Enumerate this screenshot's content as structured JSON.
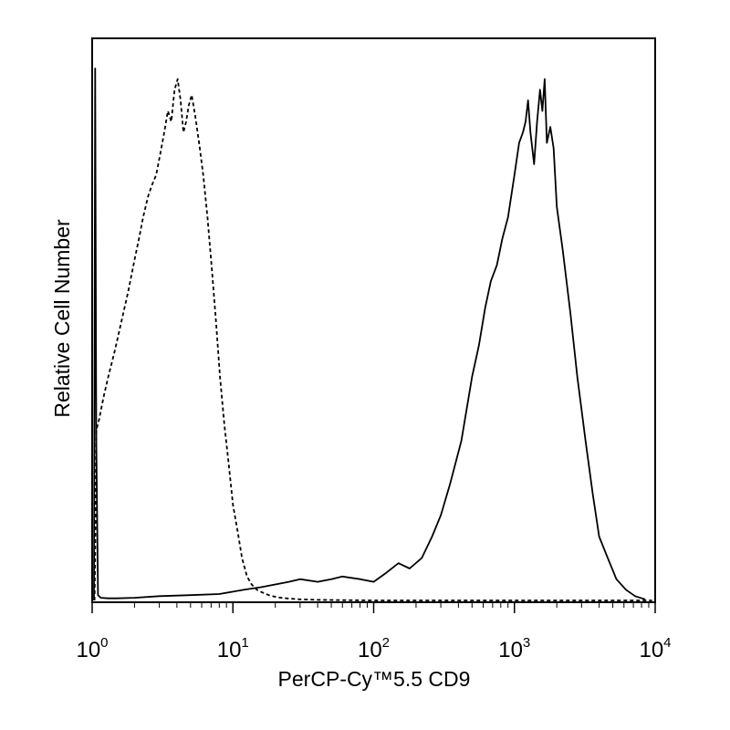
{
  "chart_data": {
    "type": "line",
    "title": "",
    "xlabel": "PerCP-Cy™5.5 CD9",
    "ylabel": "Relative Cell Number",
    "xscale": "log",
    "xlim": [
      1,
      10000
    ],
    "ylim": [
      0,
      1
    ],
    "grid": false,
    "legend": "none",
    "x_ticks": [
      {
        "value": 1,
        "base": "10",
        "exp": "0"
      },
      {
        "value": 10,
        "base": "10",
        "exp": "1"
      },
      {
        "value": 100,
        "base": "10",
        "exp": "2"
      },
      {
        "value": 1000,
        "base": "10",
        "exp": "3"
      },
      {
        "value": 10000,
        "base": "10",
        "exp": "4"
      }
    ],
    "series": [
      {
        "style": "dashed",
        "color": "#000000",
        "x": [
          1.04,
          1.05,
          1.07,
          1.12,
          1.2,
          1.3,
          1.45,
          1.6,
          1.8,
          2.0,
          2.15,
          2.3,
          2.5,
          2.65,
          2.85,
          3.05,
          3.25,
          3.45,
          3.65,
          3.85,
          4.05,
          4.25,
          4.45,
          4.65,
          4.85,
          5.1,
          5.4,
          5.75,
          6.15,
          6.6,
          7.1,
          7.6,
          8.1,
          8.7,
          9.3,
          10.0,
          10.8,
          11.6,
          12.6,
          13.6,
          14.8,
          16.2,
          18.0,
          20.5,
          24.0,
          30.0,
          40.0,
          100.0,
          1000.0,
          9500.0
        ],
        "y": [
          0.0,
          0.08,
          0.32,
          0.34,
          0.38,
          0.42,
          0.47,
          0.52,
          0.58,
          0.64,
          0.68,
          0.72,
          0.76,
          0.78,
          0.8,
          0.84,
          0.88,
          0.92,
          0.9,
          0.96,
          0.98,
          0.94,
          0.88,
          0.9,
          0.93,
          0.95,
          0.91,
          0.86,
          0.8,
          0.72,
          0.62,
          0.52,
          0.42,
          0.33,
          0.26,
          0.18,
          0.13,
          0.08,
          0.045,
          0.03,
          0.02,
          0.015,
          0.01,
          0.006,
          0.004,
          0.002,
          0.001,
          0.0,
          0.0,
          0.0
        ]
      },
      {
        "style": "solid",
        "color": "#000000",
        "x": [
          1.03,
          1.05,
          1.07,
          1.1,
          1.15,
          1.3,
          1.5,
          2.0,
          3.0,
          5.0,
          8.0,
          12.0,
          16.0,
          20.0,
          25.0,
          30.0,
          40.0,
          50.0,
          60.0,
          80.0,
          100.0,
          120.0,
          150.0,
          180.0,
          220.0,
          260.0,
          300.0,
          350.0,
          420.0,
          500.0,
          560.0,
          620.0,
          680.0,
          750.0,
          820.0,
          900.0,
          1000.0,
          1080.0,
          1150.0,
          1200.0,
          1250.0,
          1300.0,
          1380.0,
          1450.0,
          1520.0,
          1580.0,
          1640.0,
          1700.0,
          1800.0,
          1900.0,
          2000.0,
          2200.0,
          2500.0,
          2800.0,
          3200.0,
          3600.0,
          4000.0,
          4600.0,
          5300.0,
          6200.0,
          7200.0,
          8500.0
        ],
        "y": [
          0.0,
          1.0,
          0.3,
          0.01,
          0.005,
          0.004,
          0.004,
          0.005,
          0.008,
          0.01,
          0.012,
          0.02,
          0.025,
          0.03,
          0.035,
          0.04,
          0.035,
          0.04,
          0.045,
          0.04,
          0.035,
          0.05,
          0.07,
          0.06,
          0.08,
          0.12,
          0.16,
          0.22,
          0.3,
          0.42,
          0.48,
          0.55,
          0.6,
          0.63,
          0.68,
          0.72,
          0.8,
          0.86,
          0.88,
          0.9,
          0.94,
          0.88,
          0.82,
          0.9,
          0.96,
          0.92,
          0.98,
          0.86,
          0.89,
          0.85,
          0.74,
          0.66,
          0.54,
          0.42,
          0.3,
          0.2,
          0.12,
          0.08,
          0.04,
          0.02,
          0.008,
          0.002
        ]
      }
    ]
  }
}
